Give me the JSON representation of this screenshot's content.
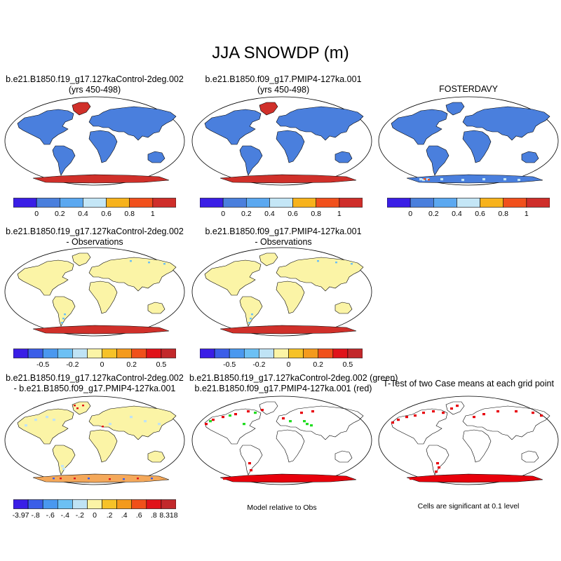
{
  "figure": {
    "title": "JJA SNOWDP (m)",
    "notes": [
      "Model relative to Obs",
      "Cells are significant at 0.1 level"
    ]
  },
  "panels": [
    {
      "id": "case1",
      "title": [
        "b.e21.B1850.f19_g17.127kaControl-2deg.002",
        "(yrs 450-498)"
      ],
      "land": "#4a7fdd",
      "greenland": "#d0302a",
      "ant": "#d0302a"
    },
    {
      "id": "case2",
      "title": [
        "b.e21.B1850.f09_g17.PMIP4-127ka.001",
        "(yrs 450-498)"
      ],
      "land": "#4a7fdd",
      "greenland": "#d0302a",
      "ant": "#d0302a"
    },
    {
      "id": "obs",
      "title": [
        "FOSTERDAVY",
        ""
      ],
      "land": "#4a7fdd",
      "greenland": "#4a7fdd",
      "ant": "#4a7fdd"
    },
    {
      "id": "diff1",
      "title": [
        "b.e21.B1850.f19_g17.127kaControl-2deg.002",
        "- Observations"
      ],
      "land": "#fbf4a6",
      "greenland": "#fbf4a6",
      "ant": "#d0302a"
    },
    {
      "id": "diff2",
      "title": [
        "b.e21.B1850.f09_g17.PMIP4-127ka.001",
        "- Observations"
      ],
      "land": "#fbf4a6",
      "greenland": "#fbf4a6",
      "ant": "#d0302a"
    },
    {
      "id": "casediff",
      "title": [
        "b.e21.B1850.f19_g17.127kaControl-2deg.002",
        "- b.e21.B1850.f09_g17.PMIP4-127ka.001"
      ],
      "land": "#fbf4a6",
      "greenland": "#fbf4a6",
      "ant": "#f4a85a"
    },
    {
      "id": "sig",
      "title": [
        "b.e21.B1850.f19_g17.127kaControl-2deg.002 (green)",
        "b.e21.B1850.f09_g17.PMIP4-127ka.001 (red)"
      ],
      "land": "none",
      "greenland": "none",
      "ant": "#e8000b"
    },
    {
      "id": "ttest",
      "title": [
        "T-Test of two Case means at each grid point",
        ""
      ],
      "land": "none",
      "greenland": "none",
      "ant": "#e8000b"
    }
  ],
  "chart_data": [
    {
      "type": "heatmap",
      "name": "absolute",
      "colors": [
        "#3a1ee6",
        "#4a7fdd",
        "#5ba8f0",
        "#c4e6f6",
        "#f7b21c",
        "#f1501c",
        "#cf2e2a"
      ],
      "ticks": [
        "0",
        "0.2",
        "0.4",
        "0.6",
        "0.8",
        "1"
      ]
    },
    {
      "type": "heatmap",
      "name": "bias",
      "colors": [
        "#3a1ee6",
        "#3b5ee8",
        "#4a98ef",
        "#6cc0f4",
        "#bfe3f5",
        "#fbf4a6",
        "#f6c228",
        "#f49a1c",
        "#f0501a",
        "#e0131a",
        "#c2282b"
      ],
      "ticks": [
        "-0.5",
        "-0.2",
        "0",
        "0.2",
        "0.5"
      ]
    },
    {
      "type": "heatmap",
      "name": "case difference",
      "colors": [
        "#3a1ee6",
        "#3b5ee8",
        "#4a98ef",
        "#6cc0f4",
        "#bfe3f5",
        "#fbf4a6",
        "#f6c228",
        "#f49a1c",
        "#f0501a",
        "#e0131a",
        "#c2282b"
      ],
      "ticks": [
        "-3.97",
        "-.8",
        "-.6",
        "-.4",
        "-.2",
        "0",
        ".2",
        ".4",
        ".6",
        ".8",
        "8.318"
      ]
    }
  ]
}
